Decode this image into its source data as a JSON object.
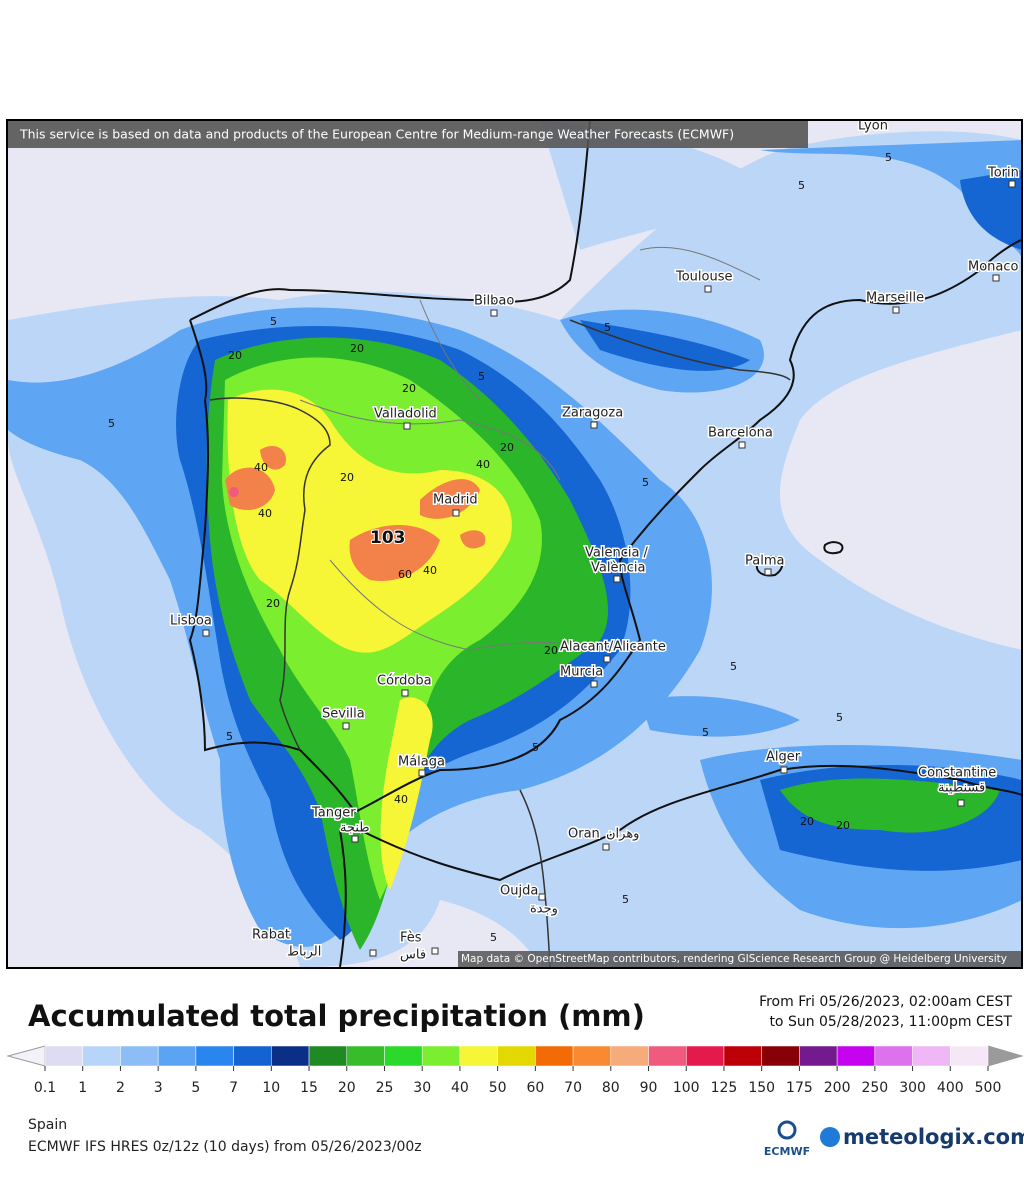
{
  "banner": "This service is based on data and products of the European Centre for Medium-range Weather Forecasts (ECMWF)",
  "map": {
    "cities": [
      "Lyon",
      "Torin",
      "Toulouse",
      "Monaco",
      "Marseille",
      "Bilbao",
      "Valladolid",
      "Zaragoza",
      "Barcelona",
      "Madrid",
      "Valencia /",
      "València",
      "Palma",
      "Lisboa",
      "Alacant/Alicante",
      "Murcia",
      "Córdoba",
      "Sevilla",
      "Málaga",
      "Alger",
      "Constantine",
      "قسنطينة",
      "Tanger",
      "طنجة",
      "Oran",
      "وهران",
      "Oujda",
      "وجدة",
      "Rabat",
      "الرباط",
      "Fès",
      "فاس"
    ],
    "contour_labels": [
      "5",
      "5",
      "5",
      "20",
      "20",
      "20",
      "40",
      "40",
      "20",
      "40",
      "103",
      "60",
      "40",
      "20",
      "20",
      "20",
      "5",
      "5",
      "5",
      "5",
      "40",
      "5",
      "5",
      "5",
      "20",
      "20",
      "5",
      "5",
      "5",
      "5"
    ],
    "credit": "Map data © OpenStreetMap contributors, rendering GIScience Research Group @ Heidelberg University"
  },
  "legend": {
    "title": "Accumulated total precipitation (mm)",
    "period_from": "From Fri 05/26/2023, 02:00am CEST",
    "period_to": "to Sun 05/28/2023, 11:00pm CEST",
    "ticks": [
      0.1,
      1,
      2,
      3,
      5,
      7,
      10,
      15,
      20,
      25,
      30,
      40,
      50,
      60,
      70,
      80,
      90,
      100,
      125,
      150,
      175,
      200,
      250,
      300,
      400,
      500
    ],
    "colors": [
      "#dedcf2",
      "#b7d5f8",
      "#8cbdf6",
      "#5ba3f3",
      "#2b85ee",
      "#1563d3",
      "#0b2f86",
      "#1f8a22",
      "#38bd2a",
      "#2ad92a",
      "#7bee2f",
      "#f6f536",
      "#e3d801",
      "#f36b06",
      "#f98a32",
      "#f6ab7a",
      "#ef5a7d",
      "#e51a4c",
      "#bd0008",
      "#870007",
      "#74198e",
      "#c603ef",
      "#de72ee",
      "#f0b7f6",
      "#f6e7f7",
      "#d3d3d3"
    ],
    "under_color": "#f2f2f8",
    "over_color": "#9a9a9a"
  },
  "footer": {
    "region": "Spain",
    "model": "ECMWF IFS HRES 0z/12z (10 days) from  05/26/2023/00z",
    "ecmwf": "ECMWF",
    "brand": "meteologix.com"
  }
}
